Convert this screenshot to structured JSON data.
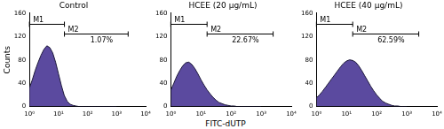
{
  "chart_data": [
    {
      "type": "area",
      "title": "Control",
      "y_label": "Counts",
      "color": "#5b4a9f",
      "grid": false,
      "log": "x",
      "x": [
        1,
        1.26,
        1.58,
        2,
        2.51,
        3.16,
        3.98,
        5.01,
        6.31,
        7.94,
        10,
        12.6,
        15.8,
        20,
        25.1,
        31.6,
        39.8,
        50.1,
        63.1,
        79.4,
        100,
        126,
        158,
        200,
        251,
        316,
        398,
        501,
        631,
        794,
        1000
      ],
      "values": [
        32,
        46,
        62,
        76,
        88,
        98,
        104,
        101,
        92,
        76,
        56,
        36,
        19,
        9,
        4,
        2,
        1,
        0,
        0,
        0,
        0,
        0,
        0,
        0,
        0,
        0,
        0,
        0,
        0,
        0,
        0
      ],
      "xlim": [
        1,
        10000
      ],
      "xticks": [
        {
          "value": 1,
          "label": "10⁰"
        },
        {
          "value": 10,
          "label": "10¹"
        },
        {
          "value": 100,
          "label": "10²"
        },
        {
          "value": 1000,
          "label": "10³"
        },
        {
          "value": 10000,
          "label": "10⁴"
        }
      ],
      "ylim": [
        0,
        160
      ],
      "yticks": [
        0,
        40,
        80,
        120,
        160
      ],
      "gates": [
        {
          "name": "M1",
          "range": [
            1,
            16
          ]
        },
        {
          "name": "M2",
          "range": [
            16,
            2500
          ],
          "value": 1.07,
          "value_label": "1.07%"
        }
      ]
    },
    {
      "type": "area",
      "title": "HCEE (20 μg/mL)",
      "x_label": "FITC-dUTP",
      "color": "#5b4a9f",
      "grid": false,
      "log": "x",
      "x": [
        1,
        1.26,
        1.58,
        2,
        2.51,
        3.16,
        3.98,
        5.01,
        6.31,
        7.94,
        10,
        12.6,
        15.8,
        20,
        25.1,
        31.6,
        39.8,
        50.1,
        63.1,
        79.4,
        100,
        126,
        158,
        200,
        251,
        316,
        398,
        501,
        631,
        794,
        1000
      ],
      "values": [
        28,
        40,
        52,
        62,
        70,
        75,
        76,
        72,
        65,
        56,
        46,
        37,
        29,
        22,
        16,
        11,
        7,
        5,
        3,
        2,
        1,
        1,
        0,
        0,
        0,
        0,
        0,
        0,
        0,
        0,
        0
      ],
      "xlim": [
        1,
        10000
      ],
      "xticks": [
        {
          "value": 1,
          "label": "10⁰"
        },
        {
          "value": 10,
          "label": "10¹"
        },
        {
          "value": 100,
          "label": "10²"
        },
        {
          "value": 1000,
          "label": "10³"
        },
        {
          "value": 10000,
          "label": "10⁴"
        }
      ],
      "ylim": [
        0,
        160
      ],
      "yticks": [
        0,
        40,
        80,
        120,
        160
      ],
      "gates": [
        {
          "name": "M1",
          "range": [
            1,
            16
          ]
        },
        {
          "name": "M2",
          "range": [
            16,
            2500
          ],
          "value": 22.67,
          "value_label": "22.67%"
        }
      ]
    },
    {
      "type": "area",
      "title": "HCEE (40 μg/mL)",
      "color": "#5b4a9f",
      "grid": false,
      "log": "x",
      "x": [
        1,
        1.26,
        1.58,
        2,
        2.51,
        3.16,
        3.98,
        5.01,
        6.31,
        7.94,
        10,
        12.6,
        15.8,
        20,
        25.1,
        31.6,
        39.8,
        50.1,
        63.1,
        79.4,
        100,
        126,
        158,
        200,
        251,
        316,
        398,
        501,
        631,
        794,
        1000
      ],
      "values": [
        15,
        20,
        26,
        33,
        40,
        47,
        54,
        61,
        68,
        74,
        78,
        80,
        79,
        76,
        70,
        62,
        53,
        44,
        35,
        27,
        20,
        14,
        9,
        6,
        4,
        2,
        1,
        1,
        0,
        0,
        0
      ],
      "xlim": [
        1,
        10000
      ],
      "xticks": [
        {
          "value": 1,
          "label": "10⁰"
        },
        {
          "value": 10,
          "label": "10¹"
        },
        {
          "value": 100,
          "label": "10²"
        },
        {
          "value": 1000,
          "label": "10³"
        },
        {
          "value": 10000,
          "label": "10⁴"
        }
      ],
      "ylim": [
        0,
        160
      ],
      "yticks": [
        0,
        40,
        80,
        120,
        160
      ],
      "gates": [
        {
          "name": "M1",
          "range": [
            1,
            16
          ]
        },
        {
          "name": "M2",
          "range": [
            16,
            2500
          ],
          "value": 62.59,
          "value_label": "62.59%"
        }
      ]
    }
  ]
}
